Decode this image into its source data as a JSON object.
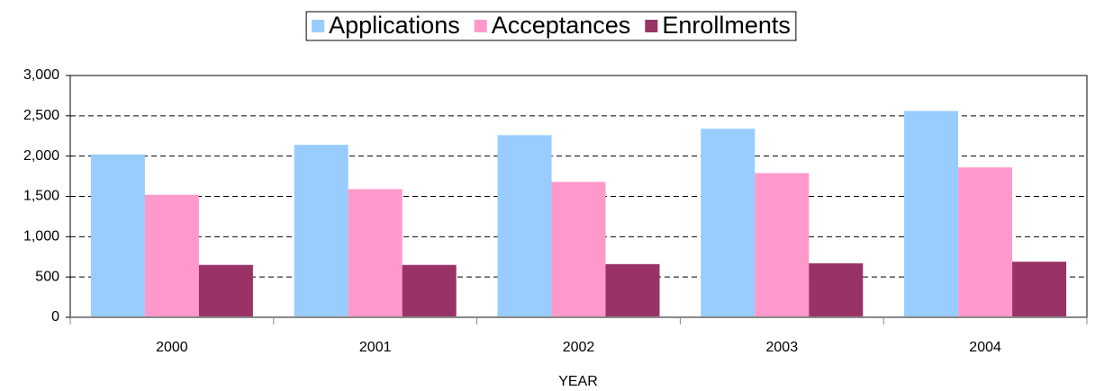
{
  "chart_data": {
    "type": "bar",
    "x_label": "YEAR",
    "categories": [
      "2000",
      "2001",
      "2002",
      "2003",
      "2004"
    ],
    "series": [
      {
        "name": "Applications",
        "color": "#99ccff",
        "values": [
          2020,
          2140,
          2260,
          2340,
          2560
        ]
      },
      {
        "name": "Acceptances",
        "color": "#ff99cc",
        "values": [
          1520,
          1590,
          1680,
          1790,
          1860
        ]
      },
      {
        "name": "Enrollments",
        "color": "#993366",
        "values": [
          650,
          650,
          660,
          670,
          690
        ]
      }
    ],
    "ylim": [
      0,
      3000
    ],
    "yticks": [
      0,
      500,
      {
        "value": 1000,
        "label": "1,000"
      },
      {
        "value": 1500,
        "label": "1,500"
      },
      {
        "value": 2000,
        "label": "2,000"
      },
      {
        "value": 2500,
        "label": "2,500"
      },
      {
        "value": 3000,
        "label": "3,000"
      }
    ],
    "grid": true,
    "legend": "top"
  }
}
